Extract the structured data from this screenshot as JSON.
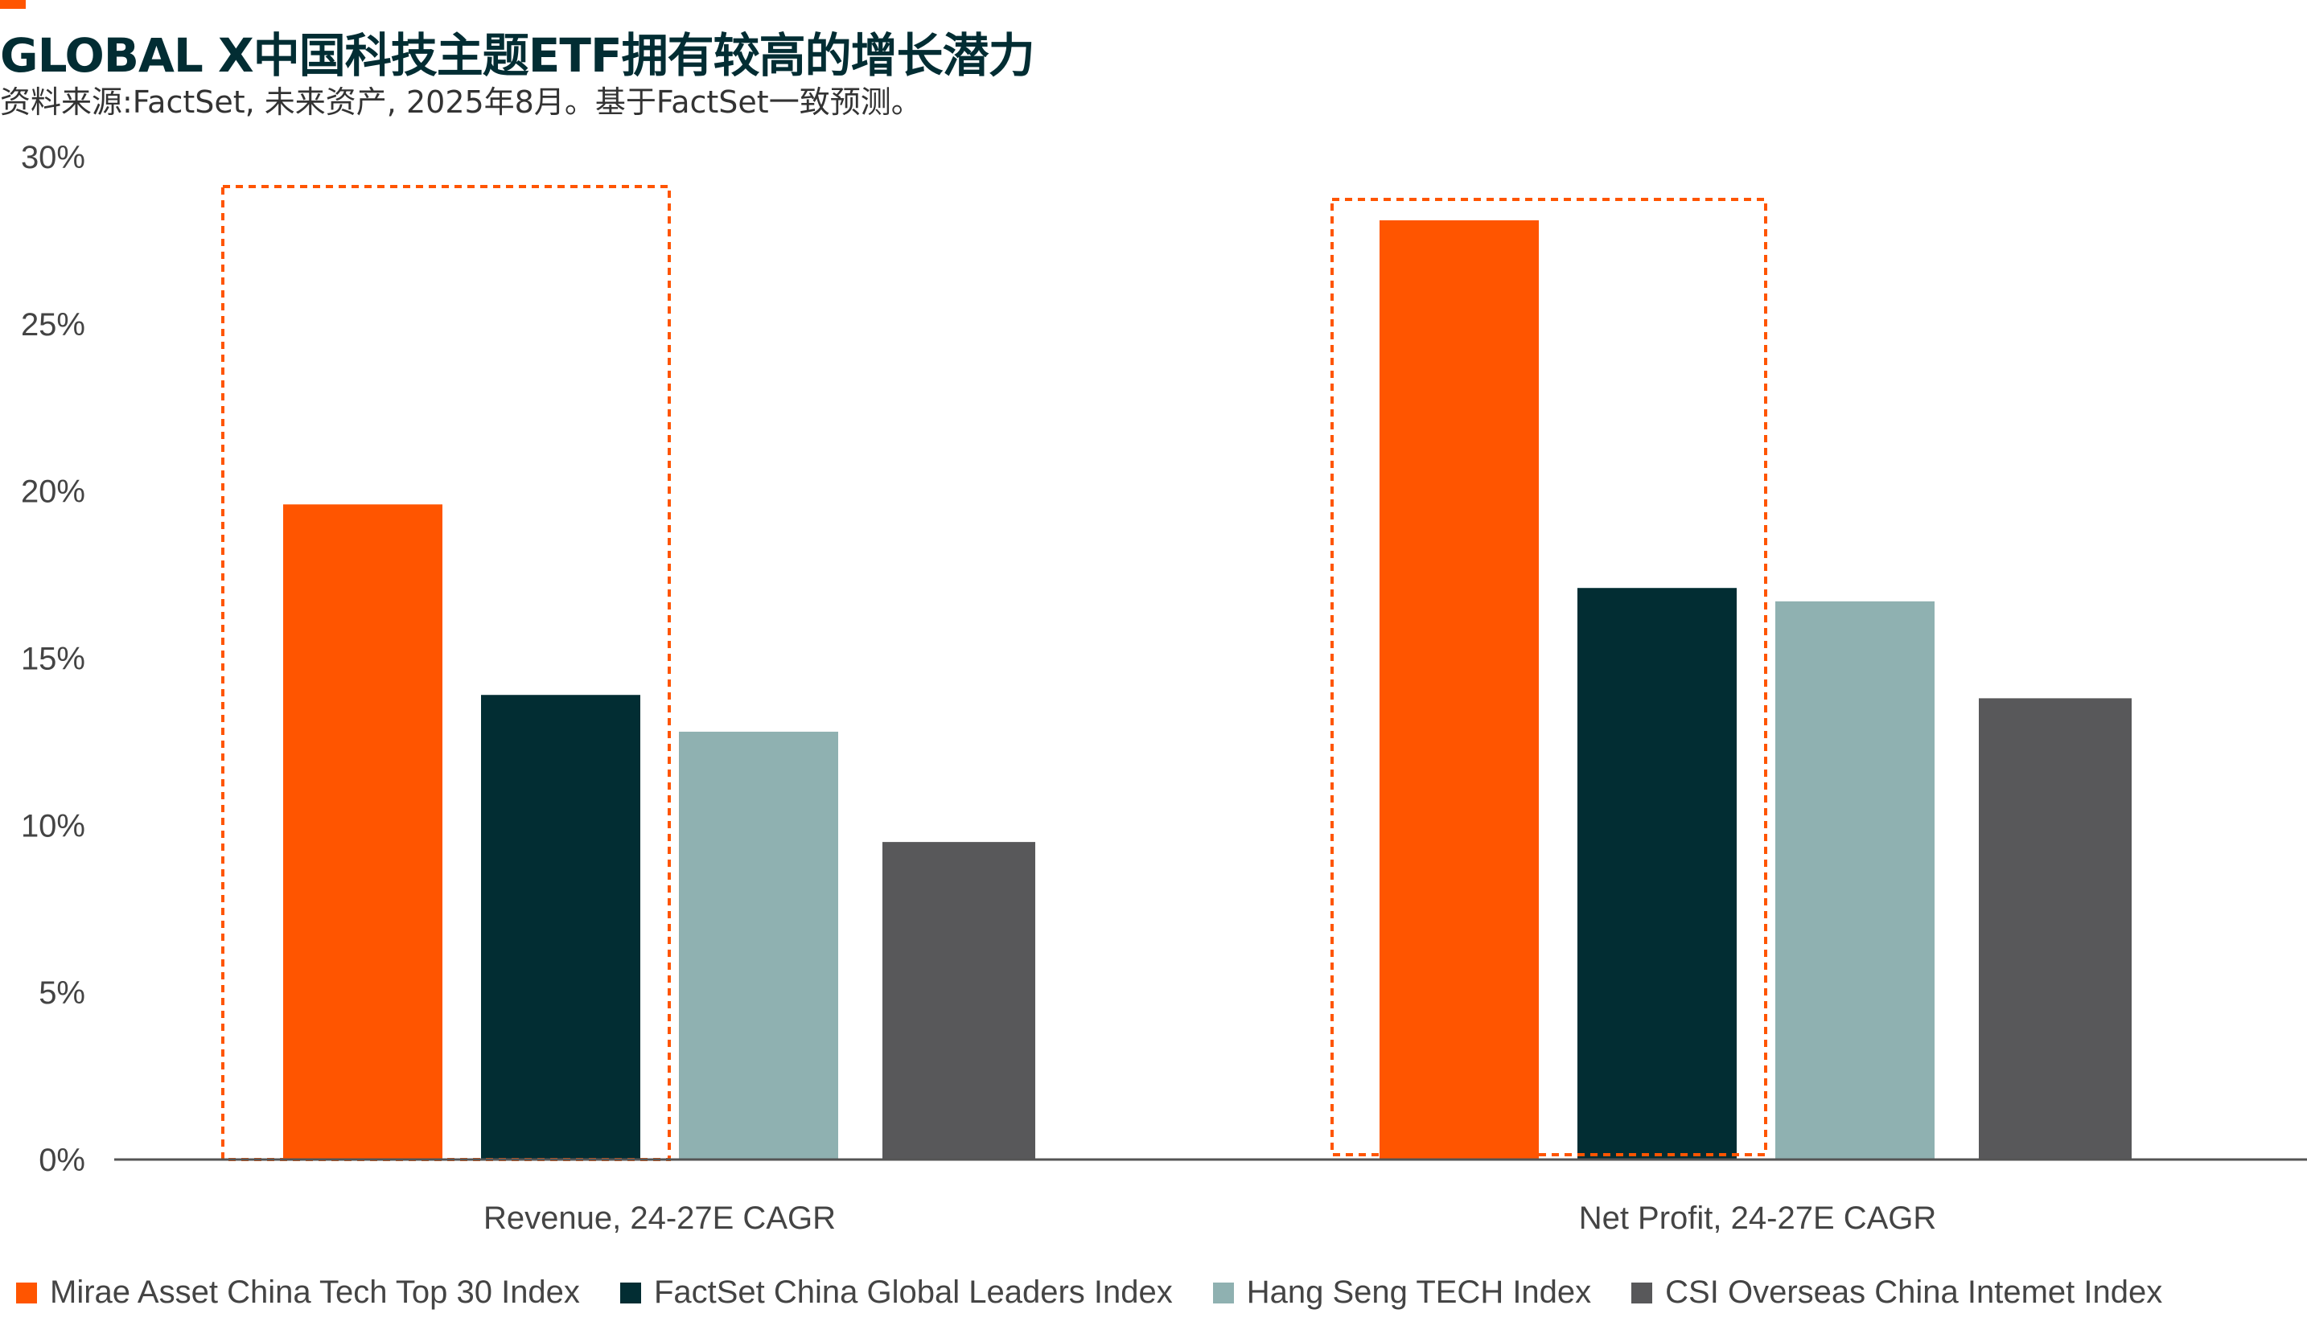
{
  "header": {
    "title": "GLOBAL X中国科技主题ETF拥有较高的增长潜力",
    "subtitle": "资料来源:FactSet, 未来资产, 2025年8月。基于FactSet一致预测。"
  },
  "colors": {
    "accent": "#ff5500",
    "series": [
      "#ff5500",
      "#022d33",
      "#8fb1b1",
      "#58585a"
    ],
    "highlight_box": "#ff5500",
    "axis": "#555555"
  },
  "chart_data": {
    "type": "bar",
    "title": "GLOBAL X中国科技主题ETF拥有较高的增长潜力",
    "subtitle": "资料来源:FactSet, 未来资产, 2025年8月。基于FactSet一致预测。",
    "categories": [
      "Revenue, 24-27E CAGR",
      "Net Profit, 24-27E CAGR"
    ],
    "series": [
      {
        "name": "Mirae Asset China Tech Top 30 Index",
        "values": [
          19.6,
          28.1
        ]
      },
      {
        "name": "FactSet China Global Leaders Index",
        "values": [
          13.9,
          17.1
        ]
      },
      {
        "name": "Hang Seng TECH Index",
        "values": [
          12.8,
          16.7
        ]
      },
      {
        "name": "CSI Overseas China Intemet Index",
        "values": [
          9.5,
          13.8
        ]
      }
    ],
    "ylim": [
      0,
      30
    ],
    "yticks": [
      0,
      5,
      10,
      15,
      20,
      25,
      30
    ],
    "ytick_labels": [
      "0%",
      "5%",
      "10%",
      "15%",
      "20%",
      "25%",
      "30%"
    ],
    "xlabel": "",
    "ylabel": "",
    "grid": false,
    "legend": "bottom",
    "highlighted_series": "Mirae Asset China Tech Top 30 Index"
  }
}
